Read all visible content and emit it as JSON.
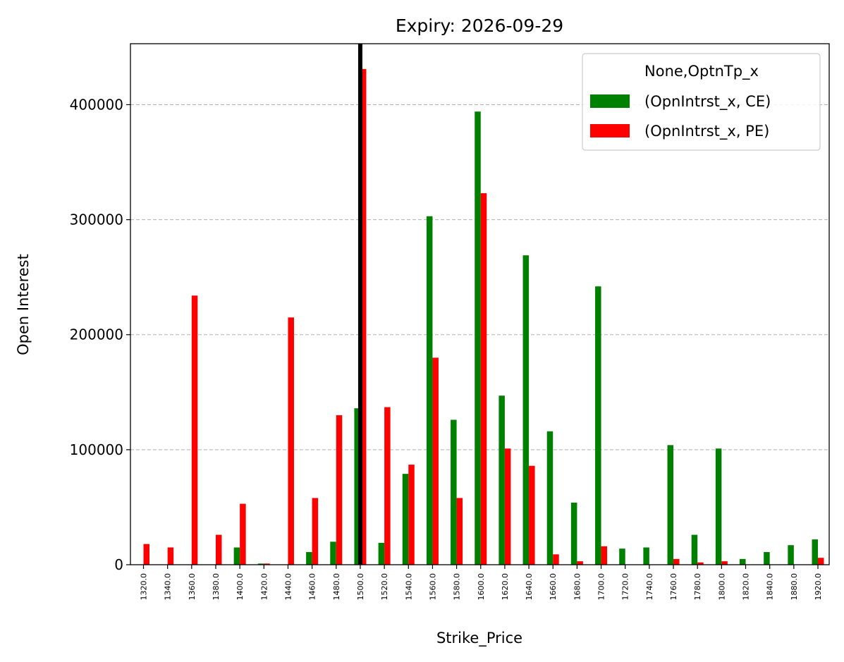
{
  "chart_data": {
    "type": "bar",
    "title": "Expiry: 2026-09-29",
    "xlabel": "Strike_Price",
    "ylabel": "Open Interest",
    "ylim": [
      0,
      453000
    ],
    "yticks": [
      0,
      100000,
      200000,
      300000,
      400000
    ],
    "grid": "y-dashed",
    "legend": {
      "placement": "top-right",
      "title": "None,OptnTp_x"
    },
    "categories": [
      "1320.0",
      "1340.0",
      "1360.0",
      "1380.0",
      "1400.0",
      "1420.0",
      "1440.0",
      "1460.0",
      "1480.0",
      "1500.0",
      "1520.0",
      "1540.0",
      "1560.0",
      "1580.0",
      "1600.0",
      "1620.0",
      "1640.0",
      "1660.0",
      "1680.0",
      "1700.0",
      "1720.0",
      "1740.0",
      "1760.0",
      "1780.0",
      "1800.0",
      "1820.0",
      "1840.0",
      "1880.0",
      "1920.0"
    ],
    "series": [
      {
        "name": "(OpnIntrst_x, CE)",
        "color": "#008000",
        "values": [
          0,
          0,
          0,
          0,
          15000,
          1000,
          0,
          11000,
          20000,
          136000,
          19000,
          79000,
          303000,
          126000,
          394000,
          147000,
          269000,
          116000,
          54000,
          242000,
          14000,
          15000,
          104000,
          26000,
          101000,
          5000,
          11000,
          17000,
          22000
        ]
      },
      {
        "name": "(OpnIntrst_x, PE)",
        "color": "#ff0000",
        "values": [
          18000,
          15000,
          234000,
          26000,
          53000,
          1000,
          215000,
          58000,
          130000,
          431000,
          137000,
          87000,
          180000,
          58000,
          323000,
          101000,
          86000,
          9000,
          3000,
          16000,
          0,
          0,
          5000,
          2000,
          3000,
          0,
          0,
          0,
          6000
        ]
      }
    ],
    "reference_line": {
      "category": "1500.0",
      "color": "#000000"
    }
  }
}
